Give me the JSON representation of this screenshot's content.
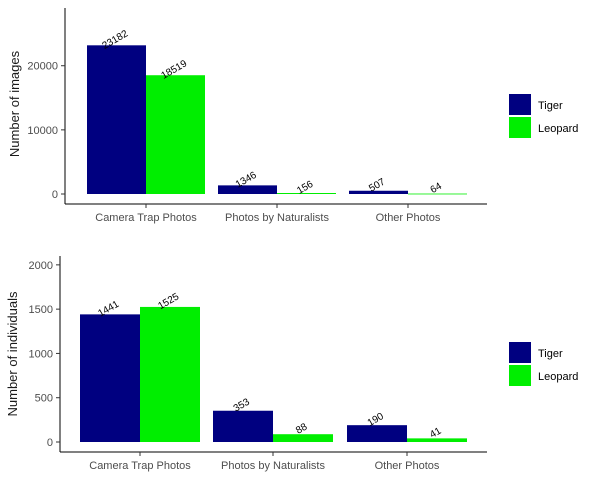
{
  "colors": {
    "tiger": "#000080",
    "leopard": "#00ee00",
    "axis": "#000000",
    "tick_text": "#4d4d4d"
  },
  "chart_data": [
    {
      "type": "bar",
      "categories": [
        "Camera Trap Photos",
        "Photos by Naturalists",
        "Other Photos"
      ],
      "series": [
        {
          "name": "Tiger",
          "values": [
            23182,
            1346,
            507
          ]
        },
        {
          "name": "Leopard",
          "values": [
            18519,
            156,
            64
          ]
        }
      ],
      "data_labels": [
        [
          "23182",
          "1346",
          "507"
        ],
        [
          "18519",
          "156",
          "64"
        ]
      ],
      "xlabel": "",
      "ylabel": "Number of images",
      "ylim": [
        0,
        29000
      ],
      "yticks": [
        0,
        10000,
        20000
      ],
      "ytick_labels": [
        "0",
        "10000",
        "20000"
      ],
      "grid": false,
      "legend_position": "right"
    },
    {
      "type": "bar",
      "categories": [
        "Camera Trap Photos",
        "Photos by Naturalists",
        "Other Photos"
      ],
      "series": [
        {
          "name": "Tiger",
          "values": [
            1441,
            353,
            190
          ]
        },
        {
          "name": "Leopard",
          "values": [
            1525,
            88,
            41
          ]
        }
      ],
      "data_labels": [
        [
          "1441",
          "353",
          "190"
        ],
        [
          "1525",
          "88",
          "41"
        ]
      ],
      "xlabel": "",
      "ylabel": "Number of individuals",
      "ylim": [
        0,
        2100
      ],
      "yticks": [
        0,
        500,
        1000,
        1500,
        2000
      ],
      "ytick_labels": [
        "0",
        "500",
        "1000",
        "1500",
        "2000"
      ],
      "grid": false,
      "legend_position": "right"
    }
  ]
}
